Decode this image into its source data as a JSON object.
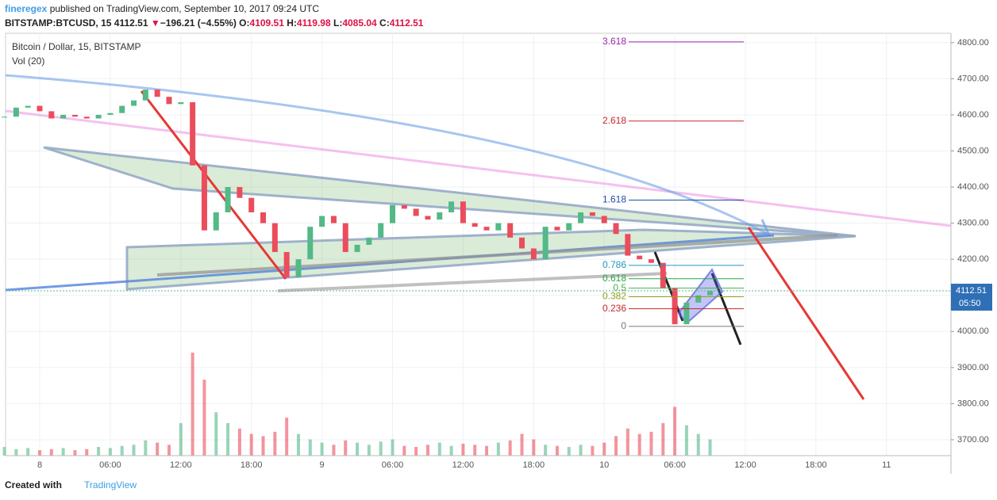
{
  "header": {
    "user": "fineregex",
    "published": "published on TradingView.com, September 10, 2017 09:24 UTC",
    "symbol": "BITSTAMP:BTCUSD, 15",
    "last": "4112.51",
    "arrow": "▼",
    "change": "−196.21 (−4.55%)",
    "o_label": "O:",
    "open": "4109.51",
    "h_label": "H:",
    "high": "4119.98",
    "l_label": "L:",
    "low": "4085.04",
    "c_label": "C:",
    "close": "4112.51"
  },
  "chart_data": {
    "type": "candlestick",
    "legend_title": "Bitcoin / Dollar, 15, BITSTAMP",
    "volume_label": "Vol (20)",
    "up_color": "#53b987",
    "down_color": "#eb4d5c",
    "close": [
      4595,
      4620,
      4625,
      4610,
      4590,
      4600,
      4595,
      4590,
      4600,
      4605,
      4625,
      4640,
      4670,
      4650,
      4630,
      4635,
      4460,
      4280,
      4330,
      4400,
      4370,
      4330,
      4300,
      4220,
      4150,
      4200,
      4290,
      4320,
      4300,
      4220,
      4240,
      4260,
      4300,
      4350,
      4340,
      4320,
      4310,
      4330,
      4360,
      4300,
      4290,
      4280,
      4300,
      4260,
      4230,
      4200,
      4290,
      4280,
      4300,
      4330,
      4320,
      4300,
      4270,
      4210,
      4200,
      4190,
      4120,
      4020,
      4080,
      4100,
      4112.51
    ],
    "volume": [
      8,
      6,
      7,
      5,
      6,
      7,
      5,
      6,
      8,
      7,
      9,
      10,
      14,
      12,
      10,
      30,
      95,
      70,
      40,
      30,
      25,
      20,
      18,
      22,
      35,
      20,
      15,
      12,
      10,
      14,
      12,
      10,
      13,
      15,
      9,
      8,
      10,
      12,
      9,
      11,
      10,
      9,
      12,
      14,
      20,
      15,
      10,
      9,
      8,
      10,
      9,
      12,
      18,
      25,
      20,
      22,
      30,
      45,
      28,
      20,
      15
    ],
    "ylim": [
      3656,
      4826
    ],
    "yticks": [
      {
        "value": 3700,
        "label": "3700.00"
      },
      {
        "value": 3800,
        "label": "3800.00"
      },
      {
        "value": 3900,
        "label": "3900.00"
      },
      {
        "value": 4000,
        "label": "4000.00"
      },
      {
        "value": 4100,
        "label": "4100.00"
      },
      {
        "value": 4200,
        "label": "4200.00"
      },
      {
        "value": 4300,
        "label": "4300.00"
      },
      {
        "value": 4400,
        "label": "4400.00"
      },
      {
        "value": 4500,
        "label": "4500.00"
      },
      {
        "value": 4600,
        "label": "4600.00"
      },
      {
        "value": 4700,
        "label": "4700.00"
      },
      {
        "value": 4800,
        "label": "4800.00"
      }
    ],
    "xlabels": [
      "8",
      "06:00",
      "12:00",
      "18:00",
      "9",
      "06:00",
      "12:00",
      "18:00",
      "10",
      "06:00",
      "12:00",
      "18:00",
      "11"
    ],
    "price_label": {
      "value": 4112.51,
      "label": "4112.51",
      "time": "05:50"
    },
    "fib": [
      {
        "label": "3.618",
        "value": 4802,
        "color": "#9c27b0"
      },
      {
        "label": "2.618",
        "value": 4583,
        "color": "#c62828"
      },
      {
        "label": "1.618",
        "value": 4364,
        "color": "#1e4fa8"
      },
      {
        "label": "0.786",
        "value": 4183,
        "color": "#2196c4"
      },
      {
        "label": "0.618",
        "value": 4146,
        "color": "#2aa64a"
      },
      {
        "label": "0.5",
        "value": 4120,
        "color": "#4caf50"
      },
      {
        "label": "0.382",
        "value": 4096,
        "color": "#8ca020"
      },
      {
        "label": "0.236",
        "value": 4063,
        "color": "#c62828"
      },
      {
        "label": "0",
        "value": 4014,
        "color": "#777777"
      }
    ]
  },
  "footer": {
    "created": "Created with",
    "brand": "TradingView"
  }
}
